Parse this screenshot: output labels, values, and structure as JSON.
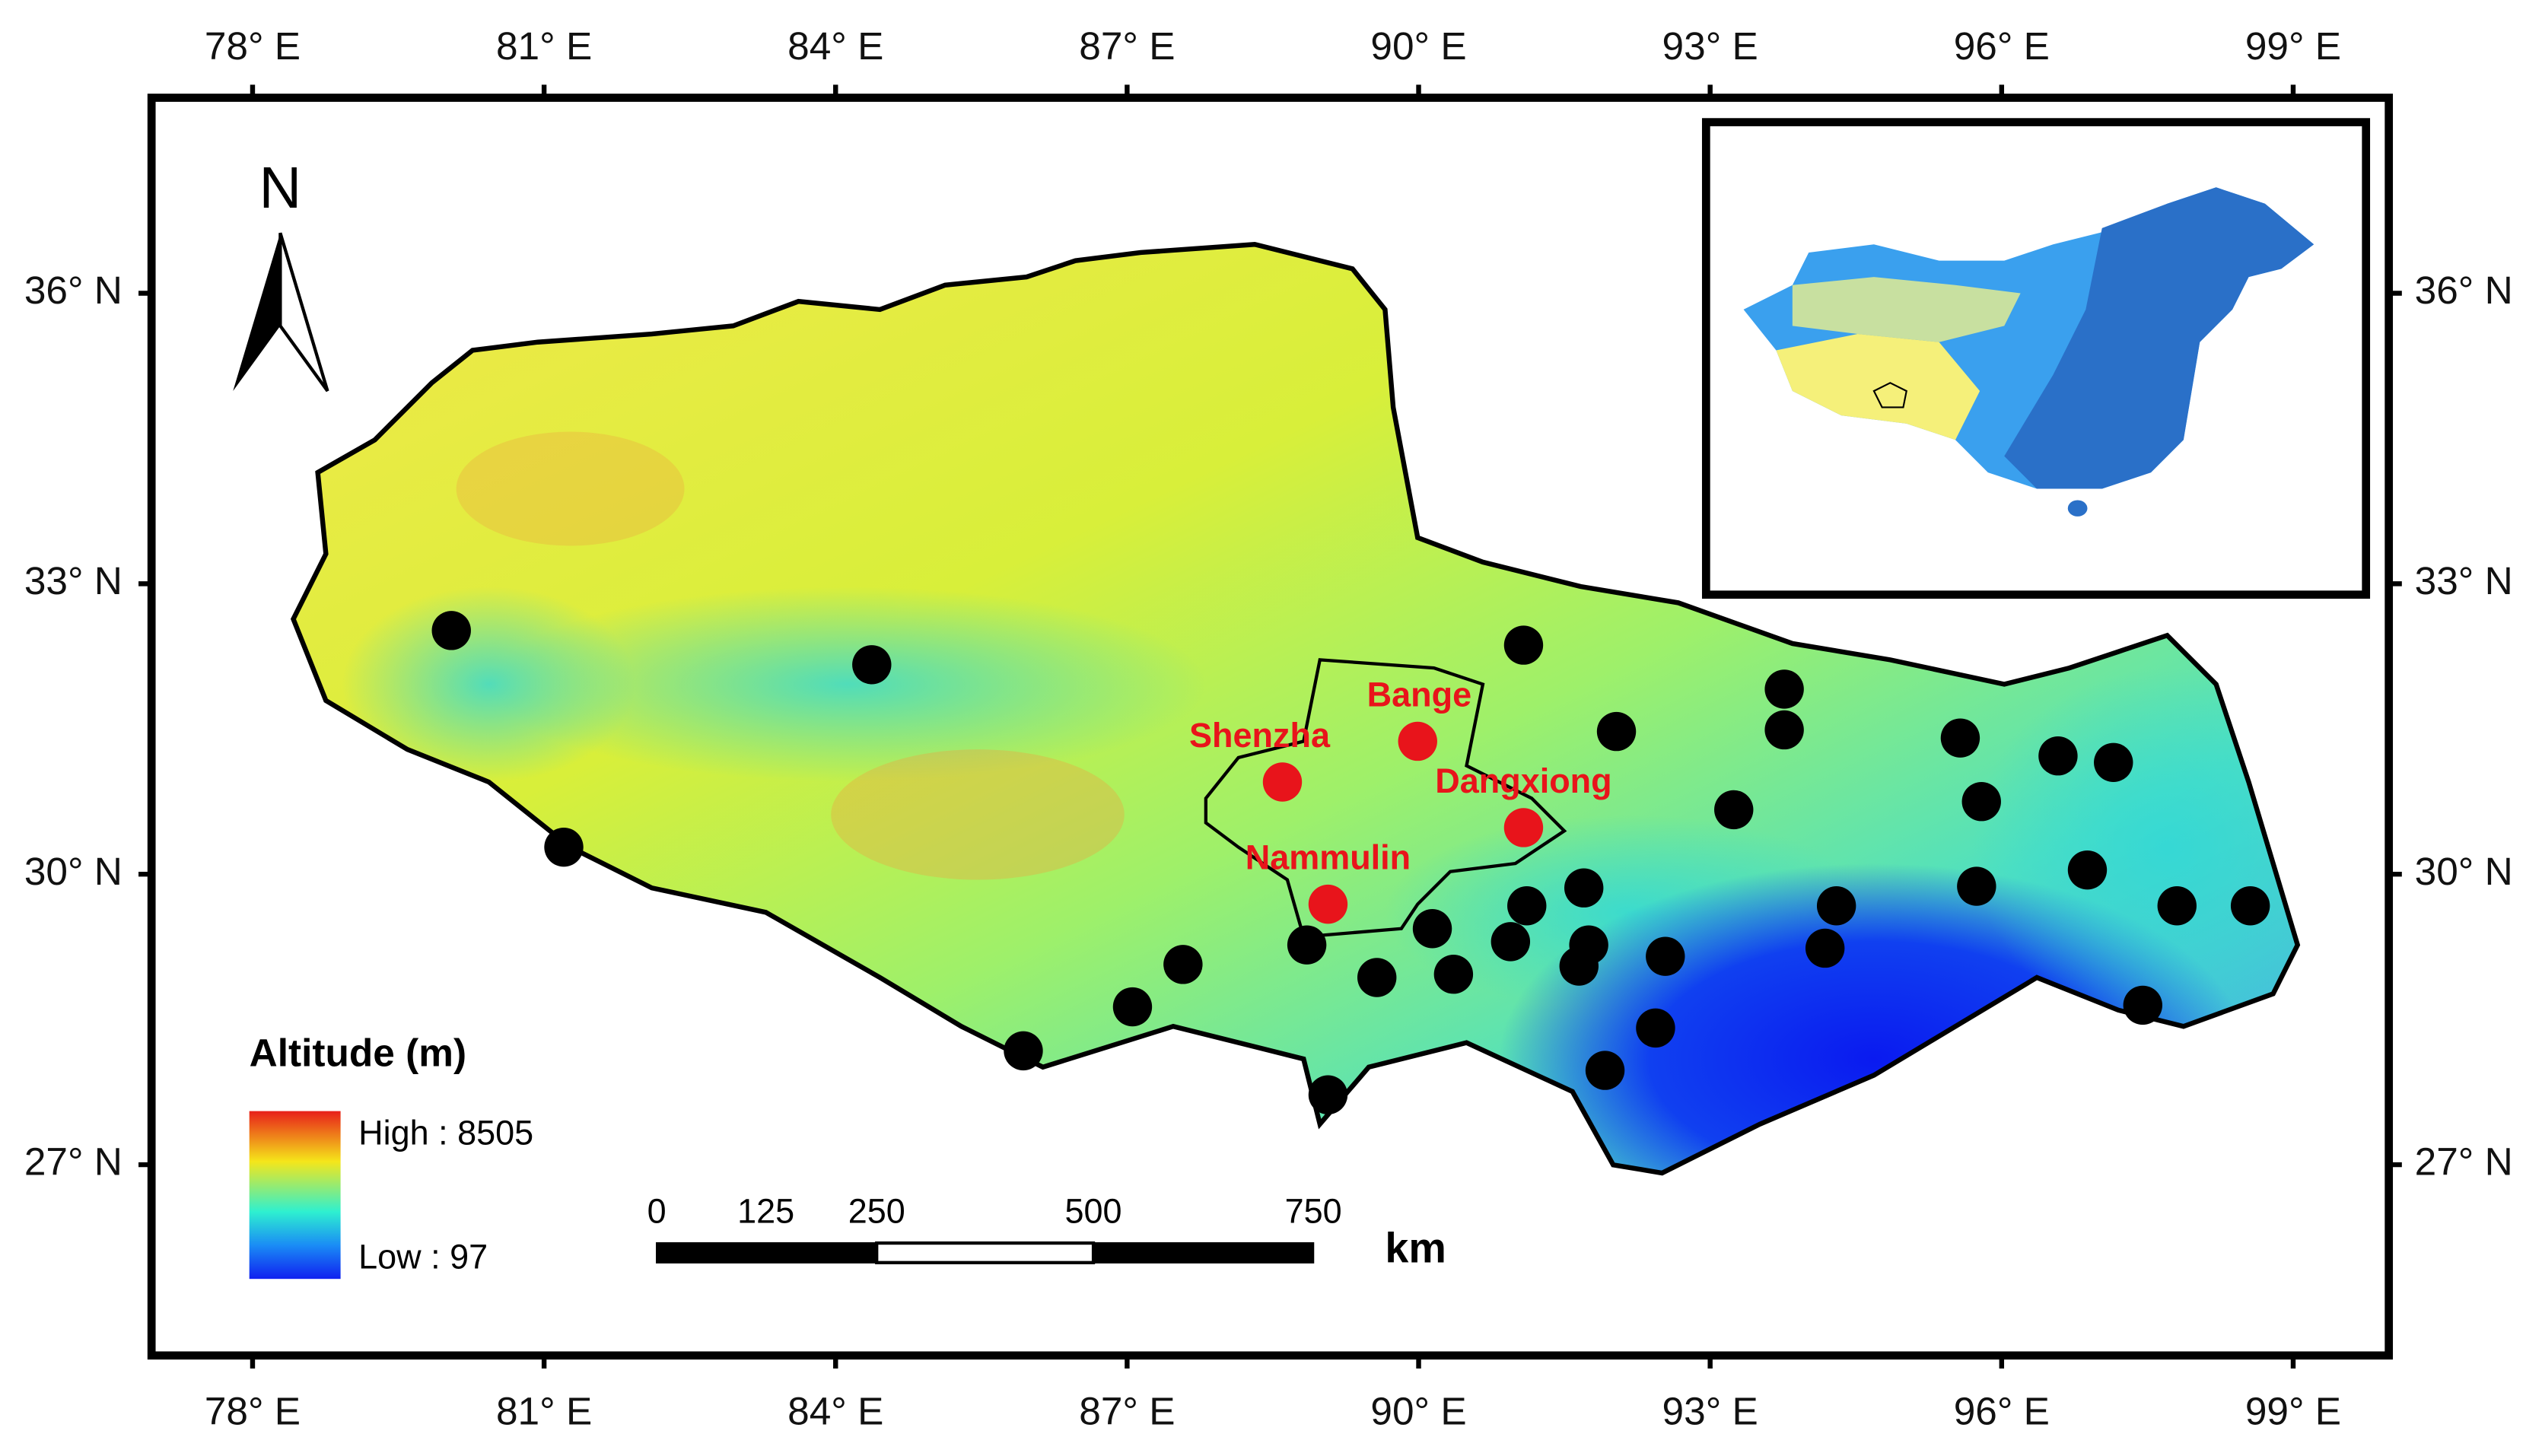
{
  "north": "N",
  "longitude_labels": [
    "78° E",
    "81° E",
    "84° E",
    "87° E",
    "90° E",
    "93° E",
    "96° E",
    "99° E"
  ],
  "latitude_labels": [
    "36° N",
    "33° N",
    "30° N",
    "27° N"
  ],
  "legend": {
    "title": "Altitude (m)",
    "high": "High : 8505",
    "low": "Low : 97"
  },
  "scale_bar": {
    "labels": [
      "0",
      "125",
      "250",
      "500",
      "750"
    ],
    "unit": "km"
  },
  "stations": [
    "Shenzha",
    "Bange",
    "Dangxiong",
    "Nammulin"
  ]
}
